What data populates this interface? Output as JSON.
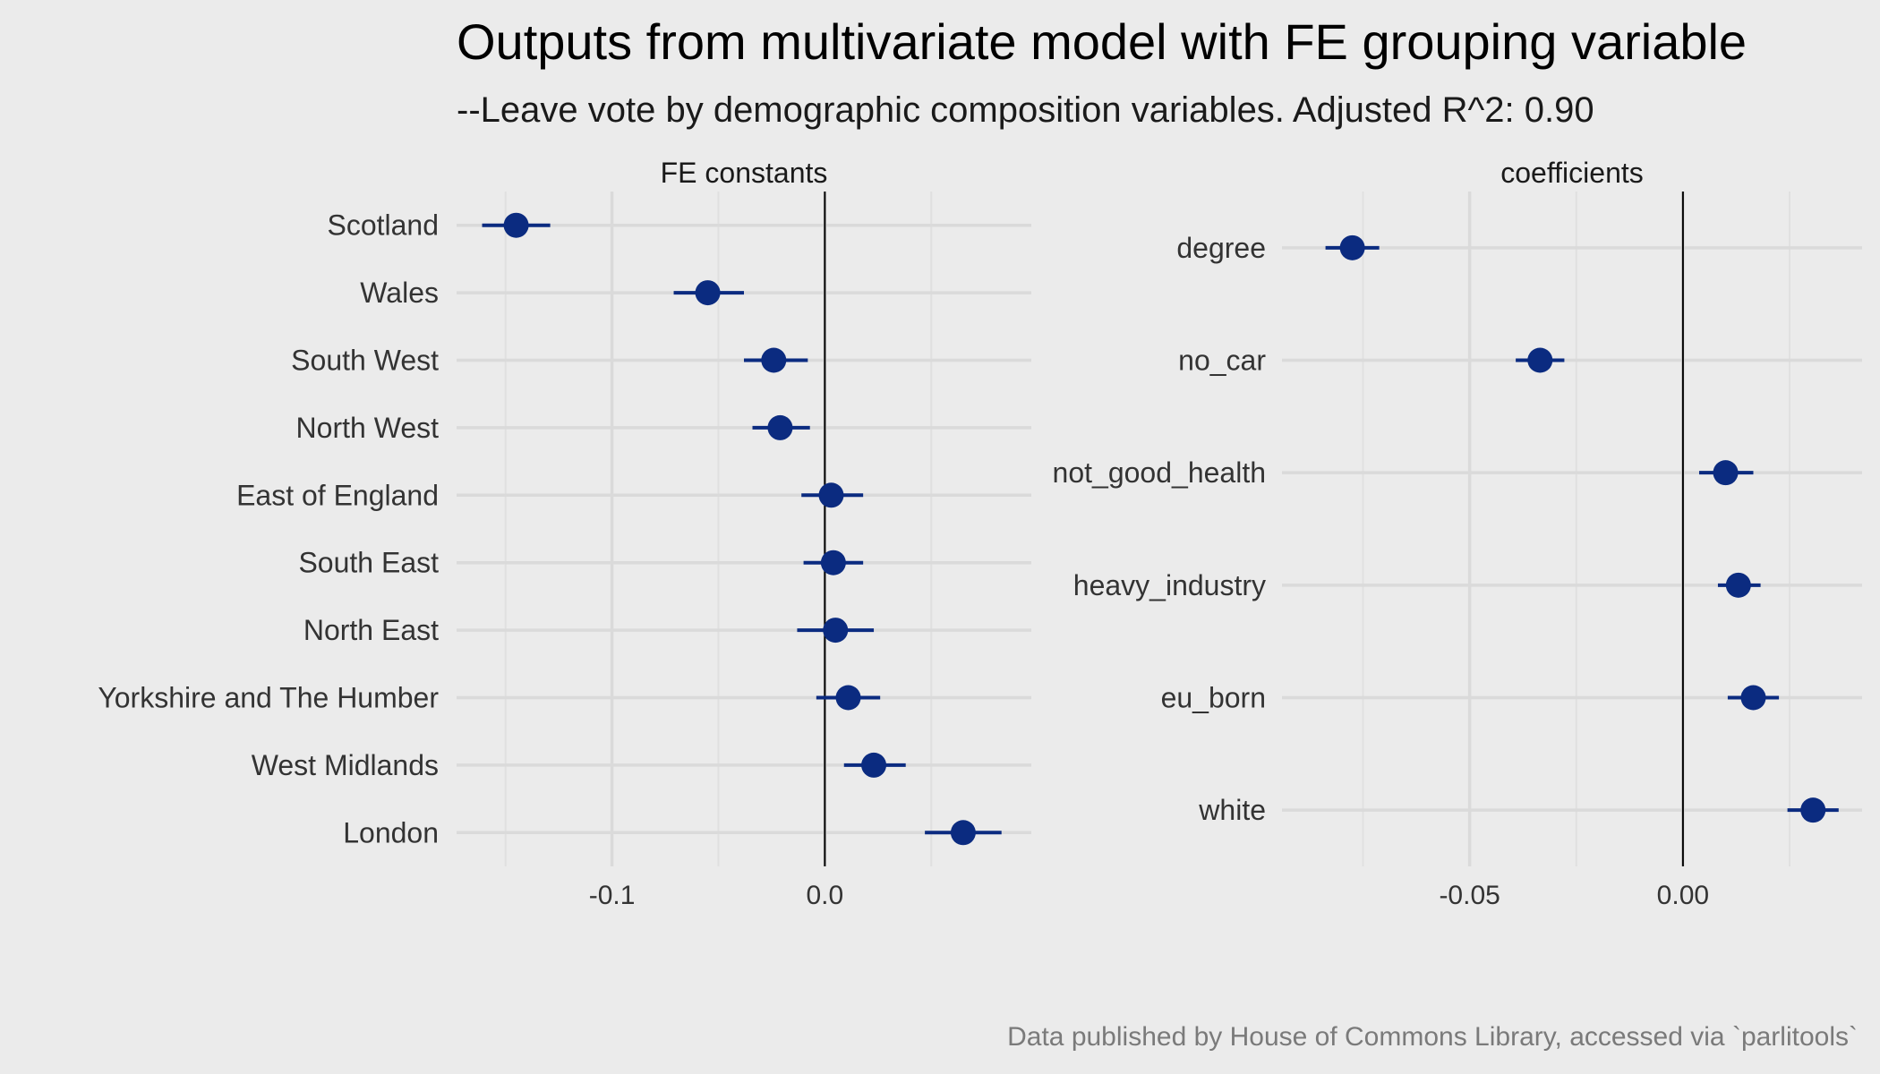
{
  "title": "Outputs from multivariate model with FE grouping variable",
  "subtitle": "--Leave vote by demographic composition variables. Adjusted R^2: 0.90",
  "caption": "Data published by House of Commons Library, accessed via `parlitools`",
  "colors": {
    "point": "#0b2b80",
    "background": "#ebebeb"
  },
  "chart_data": [
    {
      "type": "scatter",
      "panel": "FE constants",
      "categories": [
        "Scotland",
        "Wales",
        "South West",
        "North West",
        "East of England",
        "South East",
        "North East",
        "Yorkshire and The Humber",
        "West Midlands",
        "London"
      ],
      "values": [
        -0.145,
        -0.055,
        -0.024,
        -0.021,
        0.003,
        0.004,
        0.005,
        0.011,
        0.023,
        0.065
      ],
      "lower": [
        -0.161,
        -0.071,
        -0.038,
        -0.034,
        -0.011,
        -0.01,
        -0.013,
        -0.004,
        0.009,
        0.047
      ],
      "upper": [
        -0.129,
        -0.038,
        -0.008,
        -0.007,
        0.018,
        0.018,
        0.023,
        0.026,
        0.038,
        0.083
      ],
      "xlim": [
        -0.173,
        0.097
      ],
      "x_ticks": [
        -0.1,
        0.0
      ],
      "x_tick_labels": [
        "-0.1",
        "0.0"
      ],
      "x_minor_ticks": [
        -0.15,
        -0.05,
        0.05
      ],
      "reference_line": 0
    },
    {
      "type": "scatter",
      "panel": "coefficients",
      "categories": [
        "degree",
        "no_car",
        "not_good_health",
        "heavy_industry",
        "eu_born",
        "white"
      ],
      "values": [
        -0.0775,
        -0.0335,
        0.01,
        0.013,
        0.0165,
        0.0305
      ],
      "lower": [
        -0.0838,
        -0.0392,
        0.0038,
        0.0082,
        0.0105,
        0.0245
      ],
      "upper": [
        -0.0712,
        -0.0278,
        0.0165,
        0.0182,
        0.0225,
        0.0365
      ],
      "xlim": [
        -0.094,
        0.042
      ],
      "x_ticks": [
        -0.05,
        0.0
      ],
      "x_tick_labels": [
        "-0.05",
        "0.00"
      ],
      "x_minor_ticks": [
        -0.075,
        -0.025,
        0.025
      ],
      "reference_line": 0
    }
  ]
}
